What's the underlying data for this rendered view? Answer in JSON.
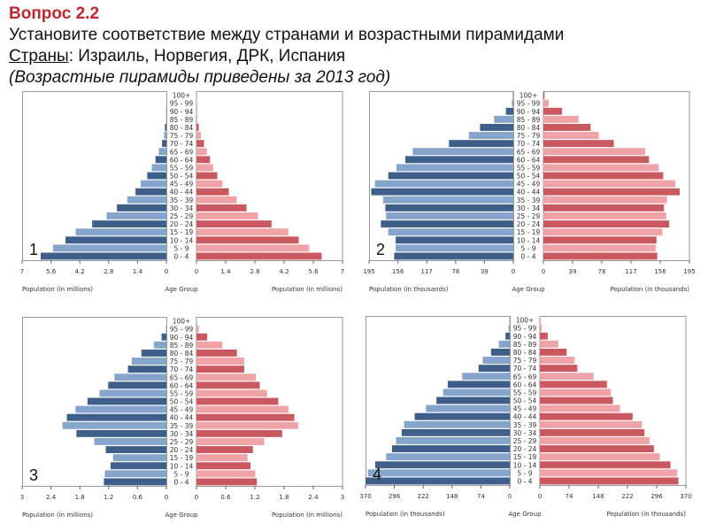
{
  "header": {
    "question": "Вопрос  2.2",
    "instruction": "Установите соответствие между странами и возрастными пирамидами",
    "countries_label": "Страны",
    "countries_list": ": Израиль, Норвегия, ДРК, Испания",
    "note": "(Возрастные пирамиды приведены за 2013 год)"
  },
  "colors": {
    "male_dark": "#3e5f8a",
    "male_light": "#86a5cc",
    "female_dark": "#c9585f",
    "female_light": "#f0a3a7",
    "frame": "#9a9a9a"
  },
  "chart_data": [
    {
      "type": "bar",
      "orientation": "horizontal-pyramid",
      "panel_label": "1",
      "age_groups": [
        "0 - 4",
        "5 - 9",
        "10 - 14",
        "15 - 19",
        "20 - 24",
        "25 - 29",
        "30 - 34",
        "35 - 39",
        "40 - 44",
        "45 - 49",
        "50 - 54",
        "55 - 59",
        "60 - 64",
        "65 - 69",
        "70 - 74",
        "75 - 79",
        "80 - 84",
        "85 - 89",
        "90 - 94",
        "95 - 99",
        "100+"
      ],
      "xlim": [
        0,
        7
      ],
      "x_ticks": [
        "7",
        "5.6",
        "4.2",
        "2.8",
        "1.4",
        "0"
      ],
      "x_ticks_right": [
        "0",
        "1.4",
        "2.8",
        "4.2",
        "5.6",
        "7"
      ],
      "xlabel_left": "Population (in millions)",
      "xlabel_center": "Age Group",
      "xlabel_right": "Population (in millions)",
      "series": [
        {
          "values": [
            6.1,
            5.5,
            4.9,
            4.4,
            3.6,
            2.9,
            2.4,
            1.9,
            1.5,
            1.25,
            0.93,
            0.71,
            0.53,
            0.37,
            0.21,
            0.11,
            0.07,
            0.02,
            0.01,
            0,
            0
          ]
        },
        {
          "values": [
            6.0,
            5.4,
            4.9,
            4.4,
            3.6,
            2.95,
            2.4,
            1.93,
            1.55,
            1.25,
            1.0,
            0.8,
            0.65,
            0.5,
            0.36,
            0.21,
            0.11,
            0.04,
            0.01,
            0,
            0
          ]
        }
      ]
    },
    {
      "type": "bar",
      "orientation": "horizontal-pyramid",
      "panel_label": "2",
      "age_groups": [
        "0 - 4",
        "5 - 9",
        "10 - 14",
        "15 - 19",
        "20 - 24",
        "25 - 29",
        "30 - 34",
        "35 - 39",
        "40 - 44",
        "45 - 49",
        "50 - 54",
        "55 - 59",
        "60 - 64",
        "65 - 69",
        "70 - 74",
        "75 - 79",
        "80 - 84",
        "85 - 89",
        "90 - 94",
        "95 - 99",
        "100+"
      ],
      "xlim": [
        0,
        195
      ],
      "x_ticks": [
        "195",
        "156",
        "117",
        "78",
        "39",
        "0"
      ],
      "x_ticks_right": [
        "0",
        "39",
        "78",
        "117",
        "156",
        "195"
      ],
      "xlabel_left": "Population (in thousands)",
      "xlabel_center": "Age Group",
      "xlabel_right": "Population (in thousands)",
      "series": [
        {
          "values": [
            161,
            159,
            159,
            169,
            179,
            172,
            173,
            176,
            192,
            187,
            169,
            158,
            146,
            136,
            87,
            60,
            45,
            26,
            10,
            2,
            0.5
          ]
        },
        {
          "values": [
            152,
            150,
            151,
            159,
            168,
            164,
            161,
            165,
            182,
            176,
            160,
            154,
            141,
            136,
            94,
            74,
            63,
            47,
            25,
            7,
            1.5
          ]
        }
      ]
    },
    {
      "type": "bar",
      "orientation": "horizontal-pyramid",
      "panel_label": "3",
      "age_groups": [
        "0 - 4",
        "5 - 9",
        "10 - 14",
        "15 - 19",
        "20 - 24",
        "25 - 29",
        "30 - 34",
        "35 - 39",
        "40 - 44",
        "45 - 49",
        "50 - 54",
        "55 - 59",
        "60 - 64",
        "65 - 69",
        "70 - 74",
        "75 - 79",
        "80 - 84",
        "85 - 89",
        "90 - 94",
        "95 - 99",
        "100+"
      ],
      "xlim": [
        0,
        3
      ],
      "x_ticks": [
        "3",
        "2.4",
        "1.8",
        "1.2",
        "0.6",
        "0"
      ],
      "x_ticks_right": [
        "0",
        "0.6",
        "1.2",
        "1.8",
        "2.4",
        "3"
      ],
      "xlabel_left": "Population (in millions)",
      "xlabel_center": "Age Group",
      "xlabel_right": "Population (in millions)",
      "series": [
        {
          "values": [
            1.3,
            1.28,
            1.16,
            1.11,
            1.26,
            1.5,
            1.87,
            2.16,
            2.07,
            1.89,
            1.64,
            1.39,
            1.21,
            1.08,
            0.8,
            0.72,
            0.52,
            0.26,
            0.1,
            0.01,
            0
          ]
        },
        {
          "values": [
            1.24,
            1.21,
            1.11,
            1.05,
            1.16,
            1.39,
            1.76,
            2.09,
            2.01,
            1.89,
            1.68,
            1.45,
            1.3,
            1.22,
            0.98,
            0.98,
            0.83,
            0.53,
            0.22,
            0.05,
            0
          ]
        }
      ]
    },
    {
      "type": "bar",
      "orientation": "horizontal-pyramid",
      "panel_label": "4",
      "age_groups": [
        "0 - 4",
        "5 - 9",
        "10 - 14",
        "15 - 19",
        "20 - 24",
        "25 - 29",
        "30 - 34",
        "35 - 39",
        "40 - 44",
        "45 - 49",
        "50 - 54",
        "55 - 59",
        "60 - 64",
        "65 - 69",
        "70 - 74",
        "75 - 79",
        "80 - 84",
        "85 - 89",
        "90 - 94",
        "95 - 99",
        "100+"
      ],
      "xlim": [
        0,
        370
      ],
      "x_ticks": [
        "370",
        "296",
        "222",
        "148",
        "74",
        "0"
      ],
      "x_ticks_right": [
        "0",
        "74",
        "148",
        "222",
        "296",
        "370"
      ],
      "xlabel_left": "Population (in thousands)",
      "xlabel_center": "Age Group",
      "xlabel_right": "Population (in thousands)",
      "series": [
        {
          "values": [
            370,
            364,
            345,
            317,
            302,
            292,
            277,
            271,
            244,
            215,
            188,
            171,
            159,
            122,
            80,
            69,
            48,
            28,
            11,
            3,
            0.5
          ]
        },
        {
          "values": [
            351,
            348,
            331,
            304,
            289,
            278,
            265,
            259,
            235,
            203,
            185,
            180,
            170,
            136,
            95,
            88,
            68,
            47,
            20,
            5,
            1
          ]
        }
      ]
    }
  ]
}
